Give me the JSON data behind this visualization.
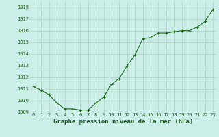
{
  "x": [
    0,
    1,
    2,
    3,
    4,
    5,
    6,
    7,
    8,
    9,
    10,
    11,
    12,
    13,
    14,
    15,
    16,
    17,
    18,
    19,
    20,
    21,
    22,
    23
  ],
  "y": [
    1011.2,
    1010.9,
    1010.5,
    1009.8,
    1009.3,
    1009.3,
    1009.2,
    1009.2,
    1009.8,
    1010.3,
    1011.4,
    1011.9,
    1013.0,
    1013.9,
    1015.3,
    1015.4,
    1015.8,
    1015.8,
    1015.9,
    1016.0,
    1016.0,
    1016.3,
    1016.8,
    1017.8
  ],
  "line_color": "#1a6b1a",
  "marker": "+",
  "marker_size": 3,
  "linewidth": 0.8,
  "bg_color": "#cceee8",
  "grid_color": "#aaccbb",
  "xlabel": "Graphe pression niveau de la mer (hPa)",
  "xlabel_fontsize": 6.5,
  "xlabel_color": "#1a5c1a",
  "ylim": [
    1009.0,
    1018.5
  ],
  "yticks": [
    1009,
    1010,
    1011,
    1012,
    1013,
    1014,
    1015,
    1016,
    1017,
    1018
  ],
  "xticks": [
    0,
    1,
    2,
    3,
    4,
    5,
    6,
    7,
    8,
    9,
    10,
    11,
    12,
    13,
    14,
    15,
    16,
    17,
    18,
    19,
    20,
    21,
    22,
    23
  ],
  "tick_fontsize": 5,
  "tick_color": "#1a5c1a"
}
